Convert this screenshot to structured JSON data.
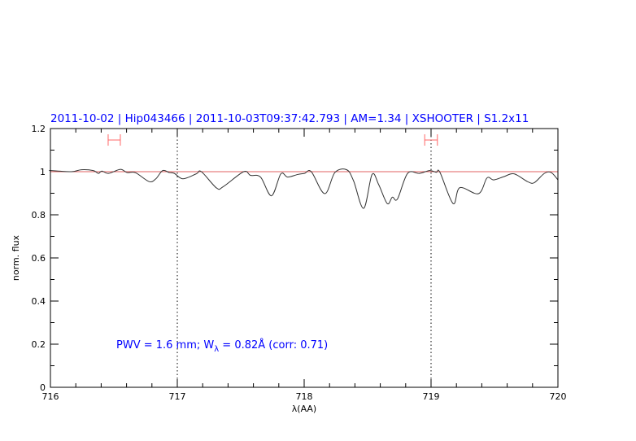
{
  "chart_data": {
    "type": "line",
    "title": "2011-10-02 | Hip043466 | 2011-10-03T09:37:42.793 | AM=1.34 | XSHOOTER | S1.2x11",
    "xlabel": "λ(AA)",
    "ylabel": "norm. flux",
    "xlim": [
      716,
      720
    ],
    "ylim": [
      0,
      1.2
    ],
    "x_ticks": [
      716,
      717,
      718,
      719,
      720
    ],
    "y_ticks": [
      0,
      0.2,
      0.4,
      0.6,
      0.8,
      1,
      1.2
    ],
    "x_tick_labels": [
      "716",
      "717",
      "718",
      "719",
      "720"
    ],
    "y_tick_labels": [
      "0",
      "0.2",
      "0.4",
      "0.6",
      "0.8",
      "1",
      "1.2"
    ],
    "x_minor_step": 0.2,
    "y_minor_step": 0.1,
    "grid": false,
    "reference_line": {
      "y": 1.0,
      "color": "#e06060"
    },
    "vertical_markers": [
      717,
      719
    ],
    "range_markers": [
      {
        "x": [
          716.455,
          716.551
        ],
        "y": 1.147,
        "color": "#ff6666"
      },
      {
        "x": [
          718.95,
          719.05
        ],
        "y": 1.147,
        "color": "#ff6666"
      }
    ],
    "annotation": {
      "prefix": "PWV = 1.6 mm; W",
      "subscript": "λ",
      "suffix": " = 0.82Å (corr: 0.71)"
    },
    "series": [
      {
        "color": "#333333",
        "x": [
          716.0,
          716.005,
          716.165,
          716.245,
          716.338,
          716.378,
          716.405,
          716.458,
          716.551,
          716.604,
          716.671,
          716.778,
          716.831,
          716.884,
          716.937,
          716.977,
          717.044,
          717.15,
          717.19,
          717.31,
          717.363,
          717.523,
          717.576,
          717.656,
          717.742,
          717.816,
          717.869,
          717.949,
          718.003,
          718.056,
          718.162,
          718.242,
          718.335,
          718.389,
          718.469,
          718.535,
          718.588,
          718.655,
          718.695,
          718.735,
          718.815,
          718.908,
          718.988,
          719.041,
          719.07,
          719.174,
          719.227,
          719.374,
          719.441,
          719.494,
          719.574,
          719.654,
          719.76,
          719.813,
          719.893,
          719.947,
          720.0
        ],
        "y": [
          1.005,
          1.005,
          1.0,
          1.009,
          1.005,
          0.992,
          1.003,
          0.992,
          1.011,
          0.996,
          0.995,
          0.954,
          0.967,
          1.005,
          0.996,
          0.992,
          0.967,
          0.99,
          1.0,
          0.924,
          0.931,
          1.0,
          0.983,
          0.975,
          0.888,
          0.99,
          0.975,
          0.987,
          0.992,
          1.0,
          0.898,
          0.996,
          1.009,
          0.958,
          0.83,
          0.987,
          0.939,
          0.852,
          0.882,
          0.873,
          0.992,
          0.992,
          1.005,
          0.997,
          0.997,
          0.852,
          0.926,
          0.898,
          0.971,
          0.962,
          0.977,
          0.99,
          0.954,
          0.949,
          0.992,
          0.996,
          0.962
        ]
      }
    ]
  }
}
